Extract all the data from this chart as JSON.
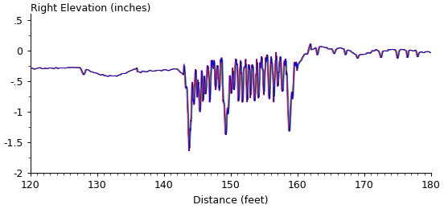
{
  "title": "Right Elevation (inches)",
  "xlabel": "Distance (feet)",
  "xlim": [
    120,
    180
  ],
  "ylim": [
    -2,
    0.6
  ],
  "yticks": [
    0.5,
    0,
    -0.5,
    -1,
    -1.5,
    -2
  ],
  "ytick_labels": [
    ".5",
    "0",
    "-.5",
    "-1",
    "-1.5",
    "-2"
  ],
  "xticks": [
    120,
    130,
    140,
    150,
    160,
    170,
    180
  ],
  "line_colors": [
    "blue",
    "red",
    "green"
  ],
  "line_width": 0.6,
  "figsize": [
    5.52,
    2.6
  ],
  "dpi": 100
}
